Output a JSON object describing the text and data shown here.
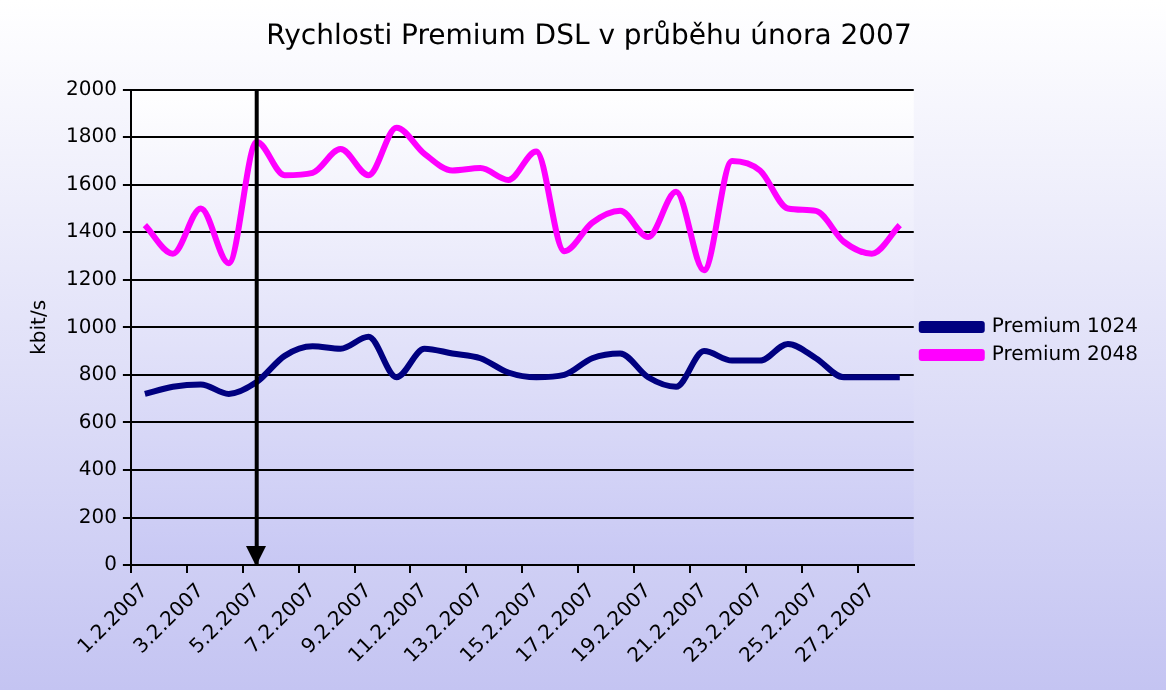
{
  "chart_data": {
    "type": "line",
    "title": "Rychlosti Premium DSL v průběhu února 2007",
    "ylabel": "kbit/s",
    "categories": [
      "1.2.2007",
      null,
      "3.2.2007",
      null,
      "5.2.2007",
      null,
      "7.2.2007",
      null,
      "9.2.2007",
      null,
      "11.2.2007",
      null,
      "13.2.2007",
      null,
      "15.2.2007",
      null,
      "17.2.2007",
      null,
      "19.2.2007",
      null,
      "21.2.2007",
      null,
      "23.2.2007",
      null,
      "25.2.2007",
      null,
      "27.2.2007",
      null
    ],
    "series": [
      {
        "name": "Premium 1024",
        "color": "#000080",
        "values": [
          720,
          750,
          760,
          720,
          770,
          880,
          920,
          910,
          960,
          790,
          910,
          890,
          870,
          810,
          790,
          800,
          870,
          890,
          790,
          750,
          900,
          860,
          860,
          930,
          870,
          790,
          790,
          790
        ]
      },
      {
        "name": "Premium 2048",
        "color": "#ff00ff",
        "values": [
          1430,
          1310,
          1500,
          1270,
          1780,
          1640,
          1650,
          1750,
          1640,
          1840,
          1730,
          1660,
          1670,
          1620,
          1740,
          1320,
          1440,
          1490,
          1380,
          1570,
          1240,
          1700,
          1660,
          1500,
          1490,
          1360,
          1310,
          1430
        ]
      }
    ],
    "ylim": [
      0,
      2000
    ],
    "yticks": [
      0,
      200,
      400,
      600,
      800,
      1000,
      1200,
      1400,
      1600,
      1800,
      2000
    ],
    "grid": "y",
    "legend": "right",
    "marker": "none",
    "line_style": "solid",
    "ref_lines": [
      {
        "axis": "x",
        "value": "5.2.2007",
        "color": "#000000"
      }
    ]
  }
}
